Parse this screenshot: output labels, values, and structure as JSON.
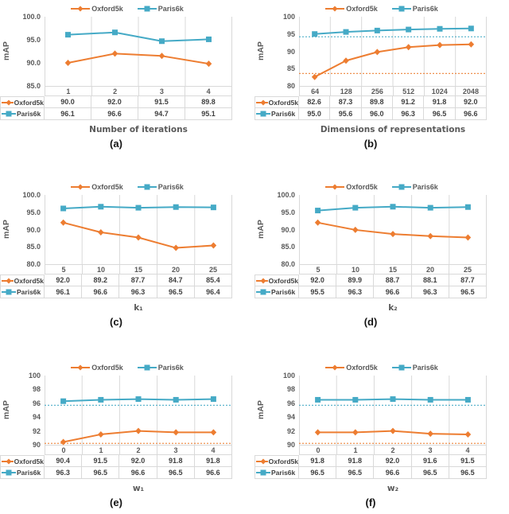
{
  "ylabel": "mAP",
  "colors": {
    "oxford5k": "#ED7D31",
    "paris6k": "#45AAC6",
    "grid": "#D9D9D9",
    "axis_text": "#595959",
    "value_text": "#404040"
  },
  "legend_items": [
    "Oxford5k",
    "Paris6k"
  ],
  "chart_data": [
    {
      "type": "line",
      "caption": "(a)",
      "xlabel": "Number of iterations",
      "ylabel": "mAP",
      "legend_position": "top",
      "grid": "vertical",
      "categories": [
        "1",
        "2",
        "3",
        "4"
      ],
      "ytick_labels": [
        "100.0",
        "95.0",
        "90.0",
        "85.0"
      ],
      "ylim": [
        85,
        100
      ],
      "series": [
        {
          "name": "Oxford5k",
          "color": "#ED7D31",
          "marker": "diamond",
          "values": [
            90.0,
            92.0,
            91.5,
            89.8
          ]
        },
        {
          "name": "Paris6k",
          "color": "#45AAC6",
          "marker": "square",
          "values": [
            96.1,
            96.6,
            94.7,
            95.1
          ]
        }
      ],
      "baselines": []
    },
    {
      "type": "line",
      "caption": "(b)",
      "xlabel": "Dimensions of  representations",
      "ylabel": "mAP",
      "legend_position": "top",
      "grid": "vertical",
      "categories": [
        "64",
        "128",
        "256",
        "512",
        "1024",
        "2048"
      ],
      "ytick_labels": [
        "100",
        "95",
        "90",
        "85",
        "80"
      ],
      "ylim": [
        80,
        100
      ],
      "series": [
        {
          "name": "Oxford5k",
          "color": "#ED7D31",
          "marker": "diamond",
          "values": [
            82.6,
            87.3,
            89.8,
            91.2,
            91.8,
            92.0
          ]
        },
        {
          "name": "Paris6k",
          "color": "#45AAC6",
          "marker": "square",
          "values": [
            95.0,
            95.6,
            96.0,
            96.3,
            96.5,
            96.6
          ]
        }
      ],
      "baselines": [
        {
          "label": "Oxford5k",
          "value": 83.6,
          "color": "#ED7D31"
        },
        {
          "label": "Paris6k",
          "value": 94.2,
          "color": "#45AAC6"
        }
      ]
    },
    {
      "type": "line",
      "caption": "(c)",
      "xlabel": "k₁",
      "ylabel": "mAP",
      "legend_position": "top",
      "grid": "vertical",
      "categories": [
        "5",
        "10",
        "15",
        "20",
        "25"
      ],
      "ytick_labels": [
        "100.0",
        "95.0",
        "90.0",
        "85.0",
        "80.0"
      ],
      "ylim": [
        80,
        100
      ],
      "series": [
        {
          "name": "Oxford5k",
          "color": "#ED7D31",
          "marker": "diamond",
          "values": [
            92.0,
            89.2,
            87.7,
            84.7,
            85.4
          ]
        },
        {
          "name": "Paris6k",
          "color": "#45AAC6",
          "marker": "square",
          "values": [
            96.1,
            96.6,
            96.3,
            96.5,
            96.4
          ]
        }
      ],
      "baselines": []
    },
    {
      "type": "line",
      "caption": "(d)",
      "xlabel": "k₂",
      "ylabel": "mAP",
      "legend_position": "top",
      "grid": "vertical",
      "categories": [
        "5",
        "10",
        "15",
        "20",
        "25"
      ],
      "ytick_labels": [
        "100.0",
        "95.0",
        "90.0",
        "85.0",
        "80.0"
      ],
      "ylim": [
        80,
        100
      ],
      "series": [
        {
          "name": "Oxford5k",
          "color": "#ED7D31",
          "marker": "diamond",
          "values": [
            92.0,
            89.9,
            88.7,
            88.1,
            87.7
          ]
        },
        {
          "name": "Paris6k",
          "color": "#45AAC6",
          "marker": "square",
          "values": [
            95.5,
            96.3,
            96.6,
            96.3,
            96.5
          ]
        }
      ],
      "baselines": []
    },
    {
      "type": "line",
      "caption": "(e)",
      "xlabel": "w₁",
      "ylabel": "mAP",
      "legend_position": "top",
      "grid": "vertical",
      "categories": [
        "0",
        "1",
        "2",
        "3",
        "4"
      ],
      "ytick_labels": [
        "100",
        "98",
        "96",
        "94",
        "92",
        "90"
      ],
      "ylim": [
        90,
        100
      ],
      "series": [
        {
          "name": "Oxford5k",
          "color": "#ED7D31",
          "marker": "diamond",
          "values": [
            90.4,
            91.5,
            92.0,
            91.8,
            91.8
          ]
        },
        {
          "name": "Paris6k",
          "color": "#45AAC6",
          "marker": "square",
          "values": [
            96.3,
            96.5,
            96.6,
            96.5,
            96.6
          ]
        }
      ],
      "baselines": [
        {
          "label": "Oxford5k",
          "value": 90.2,
          "color": "#ED7D31"
        },
        {
          "label": "Paris6k",
          "value": 95.7,
          "color": "#45AAC6"
        }
      ]
    },
    {
      "type": "line",
      "caption": "(f)",
      "xlabel": "w₂",
      "ylabel": "mAP",
      "legend_position": "top",
      "grid": "vertical",
      "categories": [
        "0",
        "1",
        "2",
        "3",
        "4"
      ],
      "ytick_labels": [
        "100",
        "98",
        "96",
        "94",
        "92",
        "90"
      ],
      "ylim": [
        90,
        100
      ],
      "series": [
        {
          "name": "Oxford5k",
          "color": "#ED7D31",
          "marker": "diamond",
          "values": [
            91.8,
            91.8,
            92.0,
            91.6,
            91.5
          ]
        },
        {
          "name": "Paris6k",
          "color": "#45AAC6",
          "marker": "square",
          "values": [
            96.5,
            96.5,
            96.6,
            96.5,
            96.5
          ]
        }
      ],
      "baselines": [
        {
          "label": "Oxford5k",
          "value": 90.2,
          "color": "#ED7D31"
        },
        {
          "label": "Paris6k",
          "value": 95.7,
          "color": "#45AAC6"
        }
      ]
    }
  ]
}
